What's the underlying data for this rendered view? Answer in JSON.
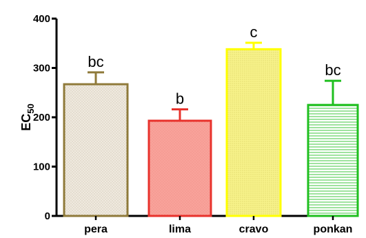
{
  "chart_data": {
    "type": "bar",
    "categories": [
      "pera",
      "lima",
      "cravo",
      "ponkan"
    ],
    "values": [
      267,
      193,
      338,
      225
    ],
    "errors": [
      24,
      23,
      13,
      49
    ],
    "annotations": [
      "bc",
      "b",
      "c",
      "bc"
    ],
    "ylabel_main": "EC",
    "ylabel_sub": "50",
    "ylim": [
      0,
      400
    ],
    "yticks": [
      "0",
      "100",
      "200",
      "300",
      "400"
    ],
    "grid": false,
    "colors": {
      "pera": {
        "stroke": "#8f7a3a",
        "fill": "#efe9df"
      },
      "lima": {
        "stroke": "#e8322c",
        "fill": "#f8a39b"
      },
      "cravo": {
        "stroke": "#ffff00",
        "fill": "#f5f07a"
      },
      "ponkan": {
        "stroke": "#1fbf1f",
        "fill": "#ccf2cc"
      }
    }
  }
}
